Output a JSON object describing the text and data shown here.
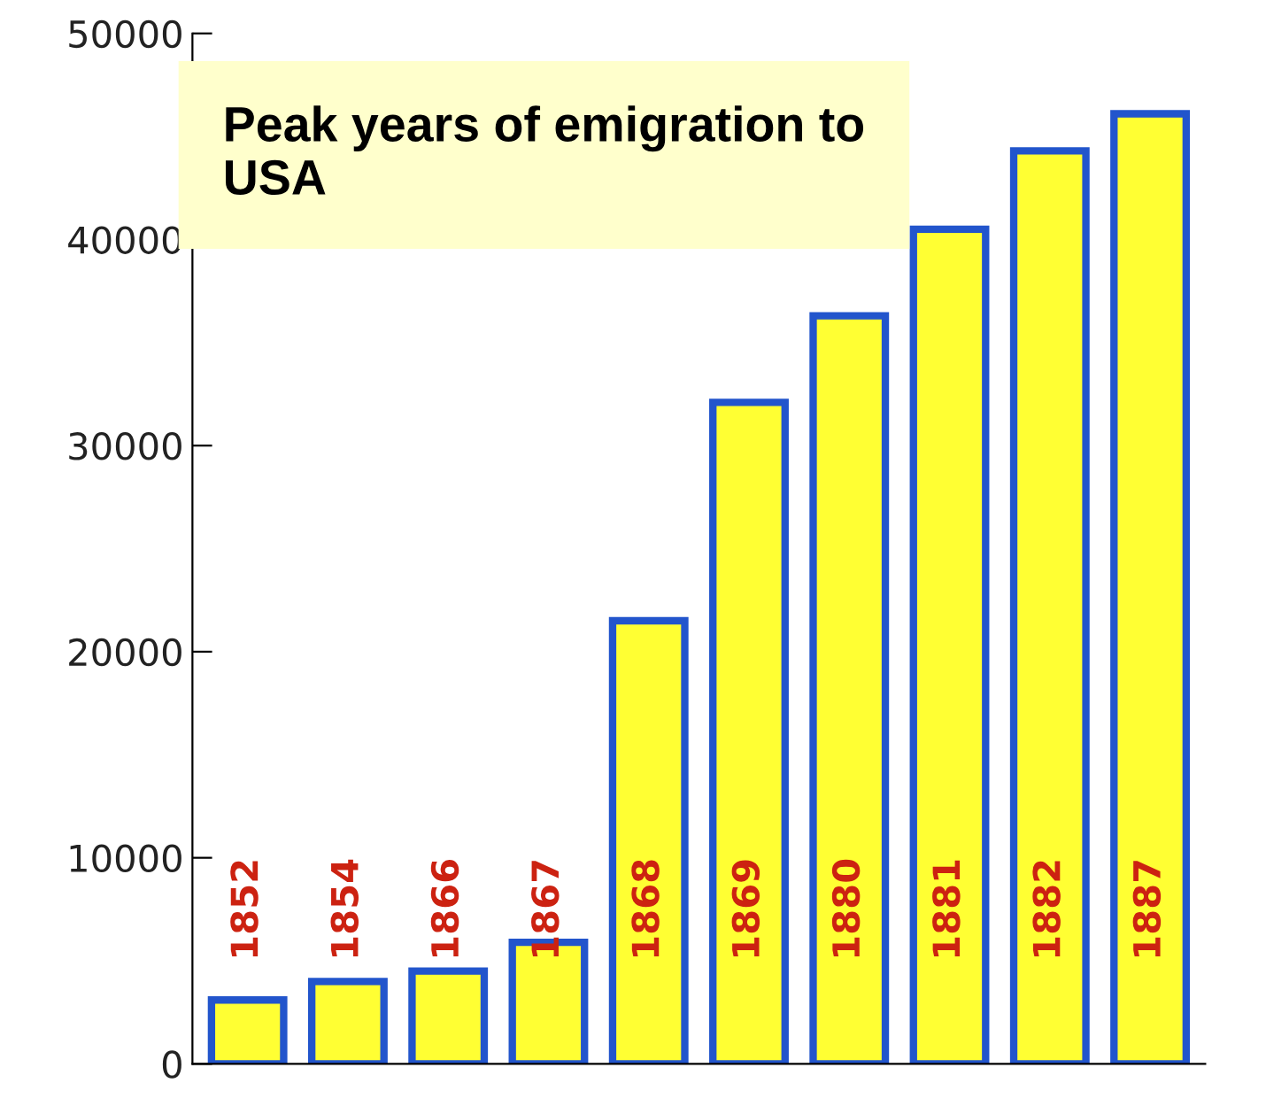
{
  "chart_data": {
    "type": "bar",
    "title": "Peak years of emigration to USA",
    "categories": [
      "1852",
      "1854",
      "1866",
      "1867",
      "1868",
      "1869",
      "1880",
      "1881",
      "1882",
      "1887"
    ],
    "values": [
      3100,
      4000,
      4500,
      5900,
      21500,
      32100,
      36300,
      40500,
      44300,
      46100
    ],
    "color": "#ffff33",
    "ylim": [
      0,
      50000
    ],
    "yticks": [
      0,
      10000,
      20000,
      30000,
      40000,
      50000
    ],
    "grid": false
  }
}
